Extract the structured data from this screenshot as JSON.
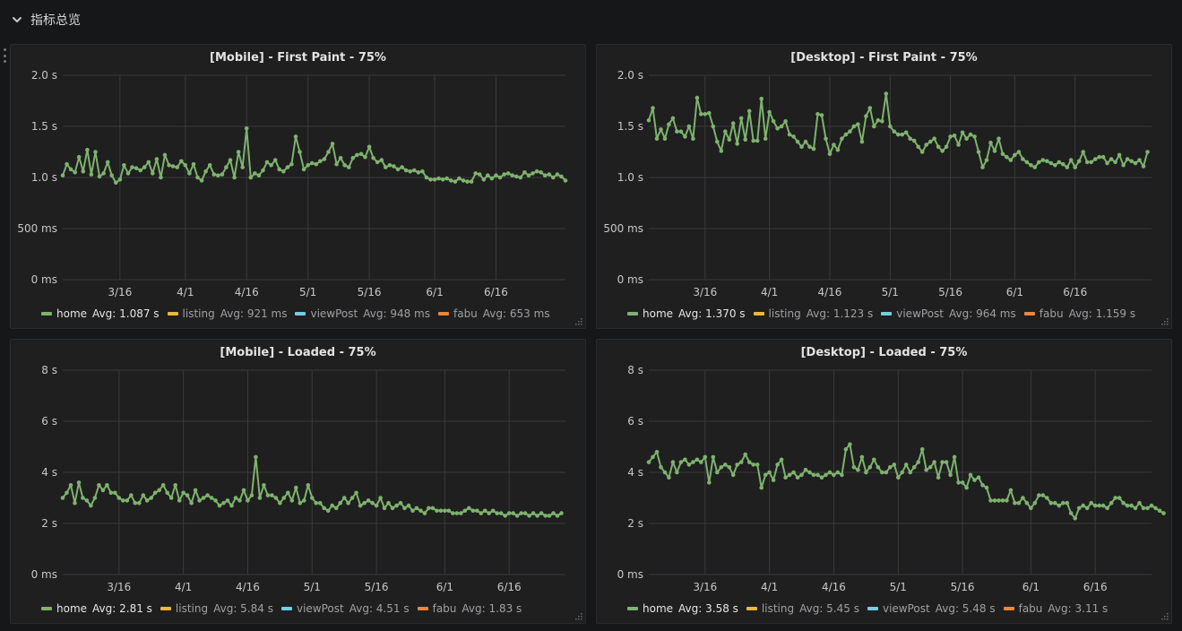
{
  "row": {
    "title": "指标总览"
  },
  "colors": {
    "home": "#7eb26d",
    "listing": "#eab839",
    "viewPost": "#6ed0e0",
    "fabu": "#ef843c",
    "grid": "#3a3a3c",
    "tick_text": "#c8c8c8"
  },
  "panels": [
    {
      "title": "[Mobile] - First Paint - 75%",
      "legend": [
        {
          "name": "home",
          "avg_label": "Avg: 1.087 s",
          "color_key": "home"
        },
        {
          "name": "listing",
          "avg_label": "Avg: 921 ms",
          "color_key": "listing"
        },
        {
          "name": "viewPost",
          "avg_label": "Avg: 948 ms",
          "color_key": "viewPost"
        },
        {
          "name": "fabu",
          "avg_label": "Avg: 653 ms",
          "color_key": "fabu"
        }
      ]
    },
    {
      "title": "[Desktop] - First Paint - 75%",
      "legend": [
        {
          "name": "home",
          "avg_label": "Avg: 1.370 s",
          "color_key": "home"
        },
        {
          "name": "listing",
          "avg_label": "Avg: 1.123 s",
          "color_key": "listing"
        },
        {
          "name": "viewPost",
          "avg_label": "Avg: 964 ms",
          "color_key": "viewPost"
        },
        {
          "name": "fabu",
          "avg_label": "Avg: 1.159 s",
          "color_key": "fabu"
        }
      ]
    },
    {
      "title": "[Mobile] - Loaded - 75%",
      "legend": [
        {
          "name": "home",
          "avg_label": "Avg: 2.81 s",
          "color_key": "home"
        },
        {
          "name": "listing",
          "avg_label": "Avg: 5.84 s",
          "color_key": "listing"
        },
        {
          "name": "viewPost",
          "avg_label": "Avg: 4.51 s",
          "color_key": "viewPost"
        },
        {
          "name": "fabu",
          "avg_label": "Avg: 1.83 s",
          "color_key": "fabu"
        }
      ]
    },
    {
      "title": "[Desktop] - Loaded - 75%",
      "legend": [
        {
          "name": "home",
          "avg_label": "Avg: 3.58 s",
          "color_key": "home"
        },
        {
          "name": "listing",
          "avg_label": "Avg: 5.45 s",
          "color_key": "listing"
        },
        {
          "name": "viewPost",
          "avg_label": "Avg: 5.48 s",
          "color_key": "viewPost"
        },
        {
          "name": "fabu",
          "avg_label": "Avg: 3.11 s",
          "color_key": "fabu"
        }
      ]
    }
  ],
  "chart_data": [
    {
      "type": "line",
      "title": "[Mobile] - First Paint - 75%",
      "unit": "s",
      "ylim": [
        0,
        2.0
      ],
      "yticks": [
        0,
        0.5,
        1.0,
        1.5,
        2.0
      ],
      "ytick_labels": [
        "0 ms",
        "500 ms",
        "1.0 s",
        "1.5 s",
        "2.0 s"
      ],
      "xlim": [
        0,
        123
      ],
      "xticks": [
        14,
        30,
        45,
        60,
        75,
        91,
        106
      ],
      "xtick_labels": [
        "3/16",
        "4/1",
        "4/16",
        "5/1",
        "5/16",
        "6/1",
        "6/16"
      ],
      "grid": true,
      "series": [
        {
          "name": "home",
          "color_key": "home",
          "x_start": 0,
          "x_step": 1,
          "values": [
            1.02,
            1.13,
            1.08,
            1.05,
            1.2,
            1.06,
            1.27,
            1.03,
            1.25,
            1.01,
            1.04,
            1.15,
            1.02,
            0.95,
            0.98,
            1.12,
            1.04,
            1.1,
            1.09,
            1.07,
            1.1,
            1.15,
            1.04,
            1.18,
            1.0,
            1.22,
            1.12,
            1.11,
            1.1,
            1.16,
            1.12,
            1.04,
            1.13,
            1.0,
            0.97,
            1.06,
            1.12,
            1.03,
            1.02,
            1.03,
            1.1,
            1.17,
            1.0,
            1.25,
            1.1,
            1.48,
            1.0,
            1.04,
            1.02,
            1.07,
            1.15,
            1.12,
            1.17,
            1.08,
            1.06,
            1.1,
            1.13,
            1.4,
            1.25,
            1.08,
            1.12,
            1.14,
            1.13,
            1.16,
            1.18,
            1.25,
            1.33,
            1.13,
            1.19,
            1.12,
            1.1,
            1.19,
            1.22,
            1.23,
            1.2,
            1.3,
            1.19,
            1.15,
            1.17,
            1.1,
            1.12,
            1.11,
            1.08,
            1.1,
            1.07,
            1.06,
            1.07,
            1.05,
            1.06,
            1.0,
            0.98,
            0.98,
            0.99,
            0.98,
            0.99,
            0.97,
            0.96,
            0.99,
            0.97,
            0.96,
            0.96,
            1.04,
            1.03,
            0.98,
            1.02,
            0.99,
            1.02,
            1.0,
            1.03,
            1.04,
            1.02,
            1.01,
            1.0,
            1.05,
            1.02,
            1.04,
            1.06,
            1.05,
            1.02,
            1.03,
            1.0,
            1.03,
            1.01,
            0.97
          ]
        }
      ]
    },
    {
      "type": "line",
      "title": "[Desktop] - First Paint - 75%",
      "unit": "s",
      "ylim": [
        0,
        2.0
      ],
      "yticks": [
        0,
        0.5,
        1.0,
        1.5,
        2.0
      ],
      "ytick_labels": [
        "0 ms",
        "500 ms",
        "1.0 s",
        "1.5 s",
        "2.0 s"
      ],
      "xlim": [
        0,
        125
      ],
      "xticks": [
        14,
        30,
        45,
        60,
        75,
        91,
        106
      ],
      "xtick_labels": [
        "3/16",
        "4/1",
        "4/16",
        "5/1",
        "5/16",
        "6/1",
        "6/16"
      ],
      "grid": true,
      "series": [
        {
          "name": "home",
          "color_key": "home",
          "x_start": 0,
          "x_step": 1,
          "values": [
            1.56,
            1.68,
            1.38,
            1.47,
            1.38,
            1.52,
            1.58,
            1.45,
            1.45,
            1.4,
            1.5,
            1.38,
            1.78,
            1.62,
            1.62,
            1.63,
            1.5,
            1.35,
            1.26,
            1.45,
            1.37,
            1.53,
            1.33,
            1.58,
            1.37,
            1.65,
            1.36,
            1.36,
            1.77,
            1.38,
            1.64,
            1.55,
            1.48,
            1.5,
            1.55,
            1.42,
            1.4,
            1.35,
            1.3,
            1.35,
            1.3,
            1.28,
            1.62,
            1.61,
            1.38,
            1.23,
            1.32,
            1.27,
            1.38,
            1.42,
            1.45,
            1.5,
            1.52,
            1.35,
            1.6,
            1.68,
            1.5,
            1.56,
            1.55,
            1.82,
            1.5,
            1.45,
            1.42,
            1.42,
            1.44,
            1.38,
            1.36,
            1.3,
            1.25,
            1.32,
            1.35,
            1.38,
            1.3,
            1.26,
            1.3,
            1.4,
            1.41,
            1.32,
            1.44,
            1.38,
            1.42,
            1.4,
            1.25,
            1.1,
            1.17,
            1.34,
            1.26,
            1.38,
            1.23,
            1.2,
            1.17,
            1.22,
            1.25,
            1.18,
            1.15,
            1.12,
            1.1,
            1.15,
            1.17,
            1.16,
            1.14,
            1.12,
            1.15,
            1.13,
            1.1,
            1.17,
            1.1,
            1.16,
            1.25,
            1.15,
            1.15,
            1.18,
            1.2,
            1.2,
            1.14,
            1.18,
            1.15,
            1.22,
            1.12,
            1.18,
            1.16,
            1.14,
            1.17,
            1.11,
            1.25
          ]
        }
      ]
    },
    {
      "type": "line",
      "title": "[Mobile] - Loaded - 75%",
      "unit": "s",
      "ylim": [
        0,
        8
      ],
      "yticks": [
        0,
        2,
        4,
        6,
        8
      ],
      "ytick_labels": [
        "0 ms",
        "2 s",
        "4 s",
        "6 s",
        "8 s"
      ],
      "xlim": [
        0,
        125
      ],
      "xticks": [
        14,
        30,
        46,
        62,
        78,
        95,
        111
      ],
      "xtick_labels": [
        "3/16",
        "4/1",
        "4/16",
        "5/1",
        "5/16",
        "6/1",
        "6/16"
      ],
      "grid": true,
      "series": [
        {
          "name": "home",
          "color_key": "home",
          "x_start": 0,
          "x_step": 1,
          "values": [
            3.0,
            3.2,
            3.5,
            2.8,
            3.6,
            3.0,
            2.9,
            2.7,
            3.0,
            3.5,
            3.3,
            3.5,
            3.2,
            3.2,
            3.0,
            2.9,
            2.9,
            3.1,
            2.8,
            2.8,
            3.1,
            2.9,
            3.0,
            3.2,
            3.3,
            3.5,
            3.2,
            3.0,
            3.5,
            2.9,
            3.2,
            3.1,
            2.8,
            3.3,
            2.9,
            3.0,
            3.1,
            3.0,
            2.9,
            2.7,
            2.8,
            2.9,
            2.7,
            3.0,
            2.9,
            3.3,
            2.9,
            3.1,
            4.6,
            3.0,
            3.5,
            3.1,
            3.1,
            3.0,
            2.8,
            3.0,
            3.2,
            2.9,
            3.4,
            2.8,
            2.9,
            3.5,
            3.0,
            2.8,
            2.8,
            2.6,
            2.5,
            2.7,
            2.6,
            2.8,
            3.0,
            2.8,
            3.0,
            3.2,
            2.7,
            2.8,
            2.9,
            2.8,
            2.7,
            3.0,
            2.6,
            2.8,
            2.6,
            2.7,
            2.8,
            2.6,
            2.7,
            2.5,
            2.6,
            2.5,
            2.4,
            2.6,
            2.6,
            2.5,
            2.5,
            2.5,
            2.5,
            2.4,
            2.4,
            2.4,
            2.5,
            2.6,
            2.5,
            2.5,
            2.4,
            2.5,
            2.4,
            2.5,
            2.4,
            2.4,
            2.3,
            2.4,
            2.4,
            2.3,
            2.4,
            2.4,
            2.3,
            2.4,
            2.3,
            2.4,
            2.3,
            2.3,
            2.4,
            2.3,
            2.4
          ]
        }
      ]
    },
    {
      "type": "line",
      "title": "[Desktop] - Loaded - 75%",
      "unit": "s",
      "ylim": [
        0,
        8
      ],
      "yticks": [
        0,
        2,
        4,
        6,
        8
      ],
      "ytick_labels": [
        "0 ms",
        "2 s",
        "4 s",
        "6 s",
        "8 s"
      ],
      "xlim": [
        0,
        125
      ],
      "xticks": [
        14,
        30,
        46,
        62,
        78,
        95,
        111
      ],
      "xtick_labels": [
        "3/16",
        "4/1",
        "4/16",
        "5/1",
        "5/16",
        "6/1",
        "6/16"
      ],
      "grid": true,
      "series": [
        {
          "name": "home",
          "color_key": "home",
          "x_start": 0,
          "x_step": 1,
          "values": [
            4.4,
            4.6,
            4.8,
            4.2,
            4.0,
            3.8,
            4.4,
            4.0,
            4.4,
            4.5,
            4.3,
            4.4,
            4.5,
            4.4,
            4.6,
            3.6,
            4.6,
            4.0,
            4.2,
            4.3,
            4.2,
            3.9,
            4.3,
            4.4,
            4.7,
            4.4,
            4.3,
            4.3,
            3.4,
            3.9,
            4.0,
            3.7,
            4.3,
            4.5,
            3.8,
            3.9,
            4.0,
            3.8,
            3.9,
            4.1,
            4.0,
            3.9,
            3.9,
            3.8,
            3.9,
            4.0,
            3.9,
            4.0,
            3.9,
            4.9,
            5.1,
            4.2,
            4.1,
            4.6,
            4.0,
            4.2,
            4.5,
            4.2,
            4.0,
            4.0,
            4.2,
            4.3,
            3.8,
            4.0,
            4.3,
            4.0,
            4.2,
            4.4,
            4.9,
            4.1,
            4.2,
            4.4,
            3.8,
            4.4,
            4.4,
            3.9,
            4.6,
            3.6,
            3.6,
            3.4,
            3.9,
            3.7,
            3.8,
            3.5,
            3.4,
            2.9,
            2.9,
            2.9,
            2.9,
            2.9,
            3.3,
            2.8,
            2.8,
            3.0,
            2.8,
            2.6,
            2.8,
            3.1,
            3.1,
            3.0,
            2.8,
            2.8,
            2.7,
            2.8,
            2.8,
            2.4,
            2.2,
            2.6,
            2.7,
            2.6,
            2.8,
            2.7,
            2.7,
            2.7,
            2.6,
            2.8,
            3.0,
            3.0,
            2.8,
            2.7,
            2.7,
            2.6,
            2.8,
            2.6,
            2.6,
            2.7,
            2.6,
            2.5,
            2.4
          ]
        }
      ]
    }
  ]
}
